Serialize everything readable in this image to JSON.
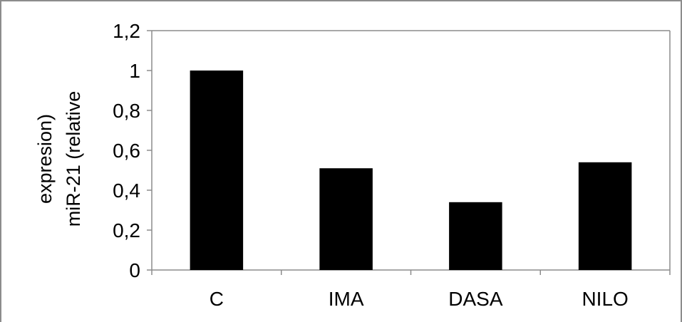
{
  "chart_data": {
    "type": "bar",
    "categories": [
      "C",
      "IMA",
      "DASA",
      "NILO"
    ],
    "values": [
      1.0,
      0.51,
      0.34,
      0.54
    ],
    "title": "",
    "xlabel": "",
    "ylabel_lines": [
      "expresion)",
      "miR-21 (relative"
    ],
    "ylim": [
      0,
      1.2
    ],
    "yticks": [
      0,
      0.2,
      0.4,
      0.6,
      0.8,
      1,
      1.2
    ],
    "ytick_labels": [
      "0",
      "0,2",
      "0,4",
      "0,6",
      "0,8",
      "1",
      "1,2"
    ],
    "grid": false,
    "legend": "none",
    "bar_color": "#000000",
    "axis_color": "#8c8c8c"
  }
}
